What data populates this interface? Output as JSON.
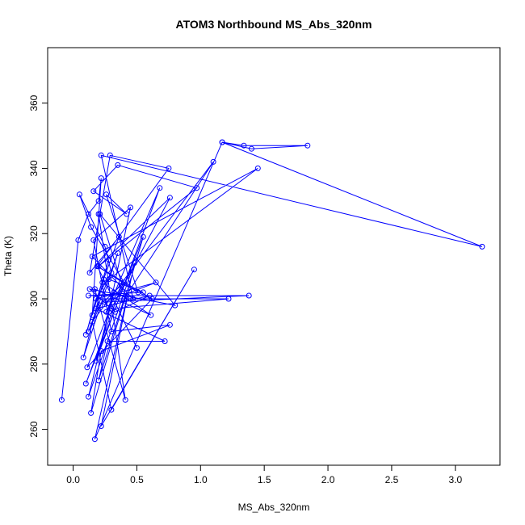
{
  "chart_data": {
    "type": "line",
    "title": "ATOM3 Northbound MS_Abs_320nm",
    "xlabel": "MS_Abs_320nm",
    "ylabel": "Theta (K)",
    "xlim": [
      -0.2,
      3.35
    ],
    "ylim": [
      249,
      377
    ],
    "x_ticks": [
      0.0,
      0.5,
      1.0,
      1.5,
      2.0,
      2.5,
      3.0
    ],
    "x_tick_labels": [
      "0.0",
      "0.5",
      "1.0",
      "1.5",
      "2.0",
      "2.5",
      "3.0"
    ],
    "y_ticks": [
      260,
      280,
      300,
      320,
      340,
      360
    ],
    "y_tick_labels": [
      "260",
      "280",
      "300",
      "320",
      "340",
      "360"
    ],
    "grid": false,
    "marker": "open-circle",
    "color": "#0000ff",
    "series": [
      {
        "x": [
          -0.09,
          0.04,
          0.12,
          0.2,
          0.22,
          0.15,
          0.28,
          0.1,
          0.18,
          0.3,
          0.25,
          0.05,
          0.14,
          0.4,
          0.21,
          0.12,
          0.35,
          0.08,
          0.24,
          0.5,
          0.19,
          0.62,
          0.11,
          0.28,
          0.45,
          0.16,
          0.3,
          0.76,
          0.22,
          0.14,
          0.55,
          0.1,
          0.38,
          0.26,
          0.68,
          0.18,
          0.32,
          0.12,
          0.48,
          0.22,
          0.95,
          0.3,
          0.15,
          1.1,
          0.4,
          0.2,
          0.27,
          0.72,
          0.18,
          0.6,
          0.33,
          0.13,
          0.8,
          0.21,
          0.42,
          0.17,
          1.17,
          1.34,
          1.84,
          1.4,
          1.17,
          3.21,
          0.22,
          0.47,
          0.15,
          1.45,
          0.28,
          0.55,
          0.12,
          1.38,
          0.25,
          0.65,
          0.18,
          1.22,
          0.3,
          0.76,
          0.2,
          0.97,
          0.35,
          0.16,
          0.42,
          0.26,
          0.51,
          0.19,
          0.75,
          0.29,
          0.13,
          0.36,
          0.23,
          0.61,
          0.17,
          0.41,
          0.2
        ],
        "y": [
          269,
          318,
          326,
          330,
          337,
          295,
          312,
          289,
          300,
          308,
          316,
          332,
          322,
          305,
          298,
          290,
          314,
          282,
          306,
          285,
          310,
          300,
          279,
          296,
          328,
          318,
          290,
          292,
          284,
          265,
          319,
          274,
          304,
          296,
          334,
          281,
          302,
          270,
          311,
          261,
          309,
          266,
          293,
          342,
          300,
          275,
          287,
          287,
          297,
          301,
          296,
          303,
          298,
          326,
          300,
          257,
          348,
          347,
          347,
          346,
          348,
          316,
          344,
          300,
          313,
          340,
          306,
          302,
          301,
          301,
          299,
          305,
          300,
          300,
          297,
          331,
          310,
          334,
          341,
          333,
          326,
          332,
          302,
          310,
          340,
          344,
          308,
          319,
          305,
          295,
          303,
          269,
          326
        ]
      }
    ]
  }
}
